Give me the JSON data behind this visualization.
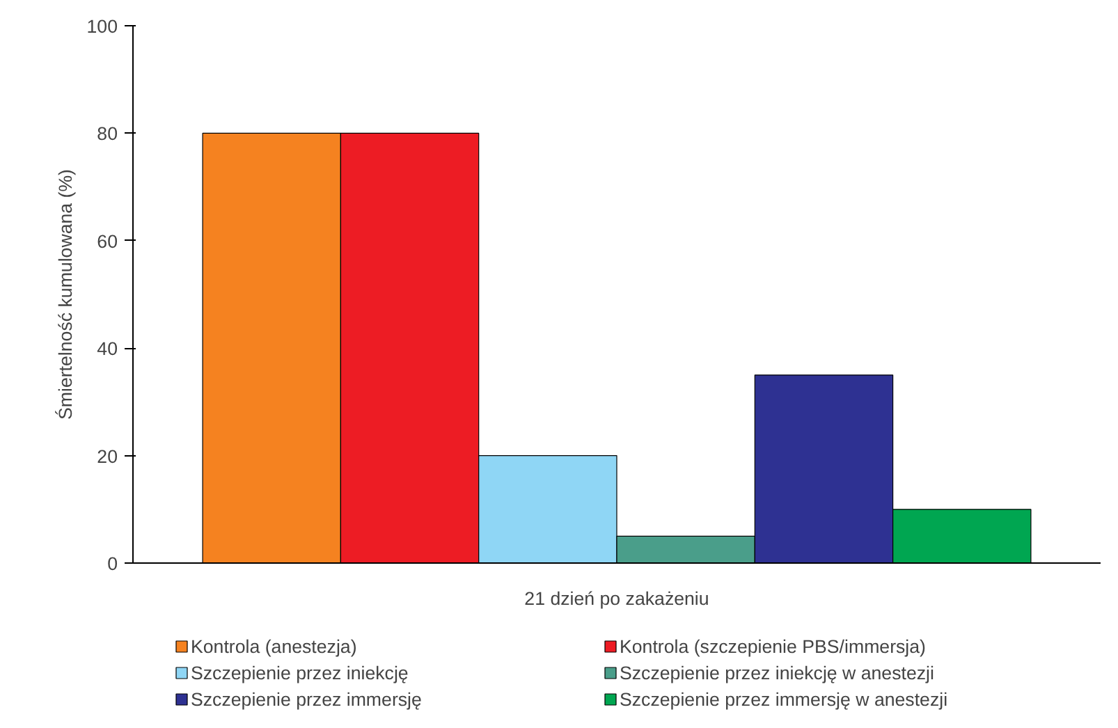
{
  "chart_data": {
    "type": "bar",
    "ylabel": "Śmiertelność kumulowana (%)",
    "categories": [
      "21 dzień po zakażeniu"
    ],
    "series": [
      {
        "name": "Kontrola (anestezja)",
        "color": "#f58220",
        "values": [
          80
        ]
      },
      {
        "name": "Kontrola (szczepienie PBS/immersja)",
        "color": "#ed1c24",
        "values": [
          80
        ]
      },
      {
        "name": "Szczepienie przez iniekcję",
        "color": "#8fd6f5",
        "values": [
          20
        ]
      },
      {
        "name": "Szczepienie przez iniekcję w anestezji",
        "color": "#4a9e8a",
        "values": [
          5
        ]
      },
      {
        "name": "Szczepienie przez immersję",
        "color": "#2e3192",
        "values": [
          35
        ]
      },
      {
        "name": "Szczepienie przez immersję w anestezji",
        "color": "#00a651",
        "values": [
          10
        ]
      }
    ],
    "ylim": [
      0,
      100
    ],
    "yticks": [
      0,
      20,
      40,
      60,
      80,
      100
    ],
    "grid": false,
    "legend": "bottom"
  }
}
